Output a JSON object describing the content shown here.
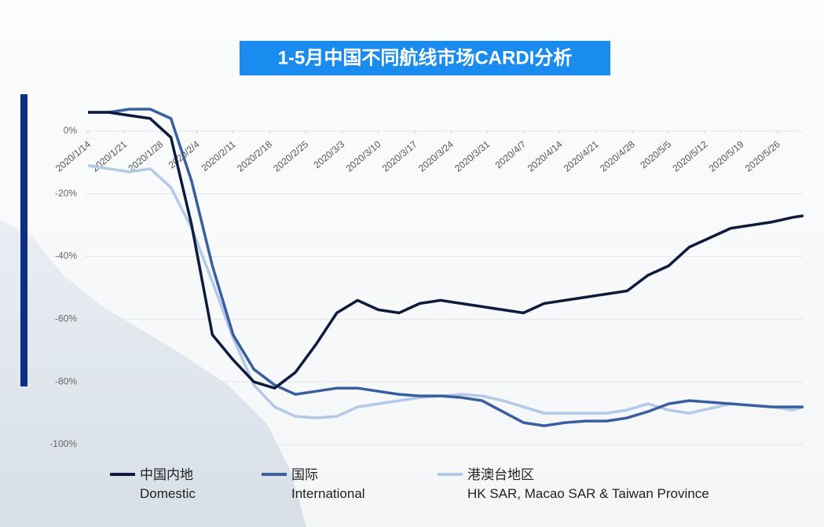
{
  "chart_data": {
    "type": "line",
    "title": "1-5月中国不同航线市场CARDI分析",
    "x": [
      "2020/1/14",
      "2020/1/18",
      "2020/1/22",
      "2020/1/26",
      "2020/1/30",
      "2020/2/3",
      "2020/2/7",
      "2020/2/11",
      "2020/2/15",
      "2020/2/19",
      "2020/2/23",
      "2020/2/27",
      "2020/3/2",
      "2020/3/6",
      "2020/3/10",
      "2020/3/14",
      "2020/3/18",
      "2020/3/22",
      "2020/3/26",
      "2020/3/30",
      "2020/4/3",
      "2020/4/7",
      "2020/4/11",
      "2020/4/15",
      "2020/4/19",
      "2020/4/23",
      "2020/4/27",
      "2020/5/1",
      "2020/5/5",
      "2020/5/9",
      "2020/5/13",
      "2020/5/17",
      "2020/5/21",
      "2020/5/25",
      "2020/5/29",
      "2020/5/31"
    ],
    "series": [
      {
        "name": "中国内地",
        "subname": "Domestic",
        "color": "#0d1b3e",
        "values": [
          6,
          6,
          5,
          4,
          -2,
          -30,
          -65,
          -73,
          -80,
          -82,
          -77,
          -68,
          -58,
          -54,
          -57,
          -58,
          -55,
          -54,
          -55,
          -56,
          -57,
          -58,
          -55,
          -54,
          -53,
          -52,
          -51,
          -46,
          -43,
          -37,
          -34,
          -31,
          -30,
          -29,
          -27.5,
          -27
        ]
      },
      {
        "name": "国际",
        "subname": "International",
        "color": "#3a5f9e",
        "values": [
          6,
          6,
          7,
          7,
          4,
          -16,
          -43,
          -65,
          -76,
          -81,
          -84,
          -83,
          -82,
          -82,
          -83,
          -84,
          -84.5,
          -84.5,
          -85,
          -86,
          -89.5,
          -93,
          -94,
          -93,
          -92.5,
          -92.5,
          -91.5,
          -89.5,
          -87,
          -86,
          -86.5,
          -87,
          -87.5,
          -88,
          -88,
          -88
        ]
      },
      {
        "name": "港澳台地区",
        "subname": "HK SAR, Macao SAR & Taiwan Province",
        "color": "#b4c8e8",
        "values": [
          -11,
          -12,
          -13,
          -12,
          -18,
          -31,
          -48,
          -66,
          -81,
          -88,
          -91,
          -91.5,
          -91,
          -88,
          -87,
          -86,
          -85,
          -84.5,
          -84,
          -84.5,
          -86,
          -88,
          -90,
          -90,
          -90,
          -90,
          -89,
          -87,
          -89,
          -90,
          -88.5,
          -87,
          -87.5,
          -88,
          -89,
          -88
        ]
      }
    ],
    "xticks": [
      "2020/1/14",
      "2020/1/21",
      "2020/1/28",
      "2020/2/4",
      "2020/2/11",
      "2020/2/18",
      "2020/2/25",
      "2020/3/3",
      "2020/3/10",
      "2020/3/17",
      "2020/3/24",
      "2020/3/31",
      "2020/4/7",
      "2020/4/14",
      "2020/4/21",
      "2020/4/28",
      "2020/5/5",
      "2020/5/12",
      "2020/5/19",
      "2020/5/26"
    ],
    "ylim": [
      -100,
      10
    ],
    "yticks": [
      {
        "value": 0,
        "label": "0%"
      },
      {
        "value": -20,
        "label": "-20%"
      },
      {
        "value": -40,
        "label": "-40%"
      },
      {
        "value": -60,
        "label": "-60%"
      },
      {
        "value": -80,
        "label": "-80%"
      },
      {
        "value": -100,
        "label": "-100%"
      }
    ],
    "grid": true
  }
}
